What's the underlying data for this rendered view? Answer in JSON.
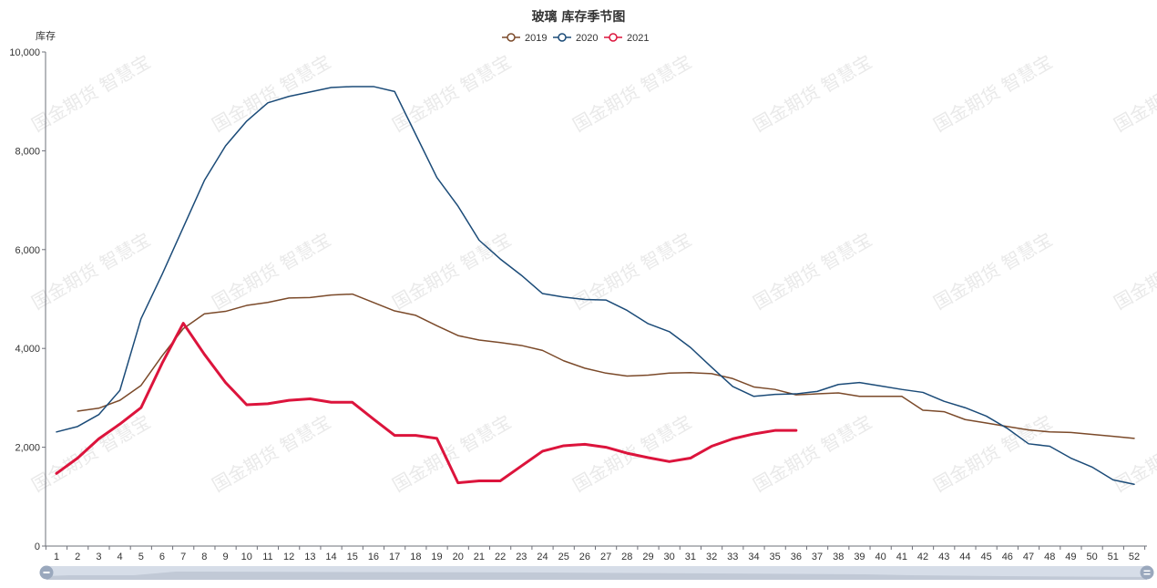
{
  "watermark_text": "国金期货 智慧宝",
  "chart_data": {
    "type": "line",
    "title": "玻璃 库存季节图",
    "ylabel": "库存",
    "xlabel": "",
    "ylim": [
      0,
      10000
    ],
    "yticks": [
      0,
      2000,
      4000,
      6000,
      8000,
      10000
    ],
    "ytick_labels": [
      "0",
      "2,000",
      "4,000",
      "6,000",
      "8,000",
      "10,000"
    ],
    "categories": [
      "1",
      "2",
      "3",
      "4",
      "5",
      "6",
      "7",
      "8",
      "9",
      "10",
      "11",
      "12",
      "13",
      "14",
      "15",
      "16",
      "17",
      "18",
      "19",
      "20",
      "21",
      "22",
      "23",
      "24",
      "25",
      "26",
      "27",
      "28",
      "29",
      "30",
      "31",
      "32",
      "33",
      "34",
      "35",
      "36",
      "37",
      "38",
      "39",
      "40",
      "41",
      "42",
      "43",
      "44",
      "45",
      "46",
      "47",
      "48",
      "49",
      "50",
      "51",
      "52"
    ],
    "legend_position": "top-center",
    "grid": false,
    "series": [
      {
        "name": "2019",
        "color": "#7b4a2a",
        "values": [
          null,
          2730,
          2790,
          2950,
          3250,
          3850,
          4400,
          4700,
          4750,
          4870,
          4930,
          5020,
          5030,
          5080,
          5100,
          4930,
          4760,
          4670,
          4460,
          4260,
          4170,
          4120,
          4060,
          3960,
          3750,
          3600,
          3500,
          3440,
          3460,
          3500,
          3510,
          3490,
          3390,
          3220,
          3170,
          3060,
          3080,
          3100,
          3030,
          3030,
          3030,
          2750,
          2720,
          2560,
          2490,
          2420,
          2350,
          2310,
          2300,
          2260,
          2220,
          2180
        ],
        "width": 1.5
      },
      {
        "name": "2020",
        "color": "#1b4b78",
        "values": [
          2310,
          2420,
          2660,
          3150,
          4600,
          5500,
          6450,
          7400,
          8100,
          8600,
          8970,
          9100,
          9190,
          9280,
          9300,
          9300,
          9200,
          8330,
          7460,
          6880,
          6190,
          5810,
          5480,
          5110,
          5040,
          4990,
          4980,
          4770,
          4500,
          4340,
          4020,
          3620,
          3230,
          3030,
          3070,
          3080,
          3130,
          3270,
          3310,
          3240,
          3170,
          3110,
          2930,
          2800,
          2630,
          2380,
          2070,
          2020,
          1780,
          1600,
          1340,
          1250
        ],
        "width": 1.5
      },
      {
        "name": "2021",
        "color": "#dc143c",
        "values": [
          1470,
          1780,
          2170,
          2470,
          2800,
          3700,
          4510,
          3880,
          3310,
          2860,
          2880,
          2950,
          2980,
          2910,
          2910,
          2570,
          2240,
          2240,
          2180,
          1280,
          1320,
          1320,
          1620,
          1920,
          2030,
          2060,
          2000,
          1880,
          1790,
          1710,
          1780,
          2020,
          2170,
          2270,
          2340,
          2340,
          null,
          null,
          null,
          null,
          null,
          null,
          null,
          null,
          null,
          null,
          null,
          null,
          null,
          null,
          null,
          null
        ],
        "width": 3
      }
    ]
  }
}
